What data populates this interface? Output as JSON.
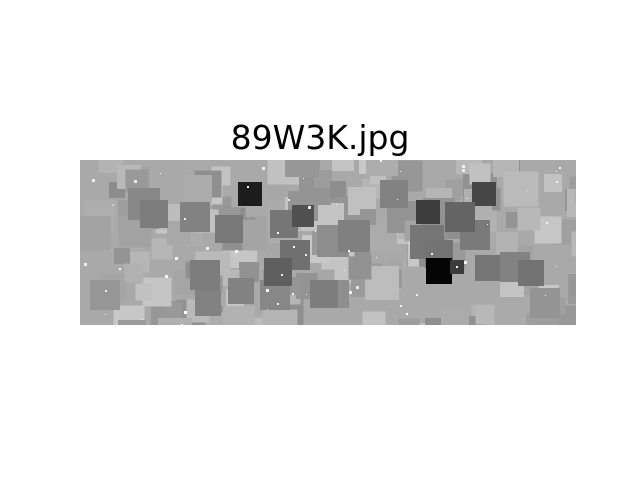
{
  "figure": {
    "title": "89W3K.jpg",
    "background": "#ffffff"
  },
  "image": {
    "description_type": "grayscale mosaic of overlapping squares",
    "base_color": "#a9a9a9",
    "dark_color": "#000000",
    "light_color": "#d8d8d8"
  }
}
